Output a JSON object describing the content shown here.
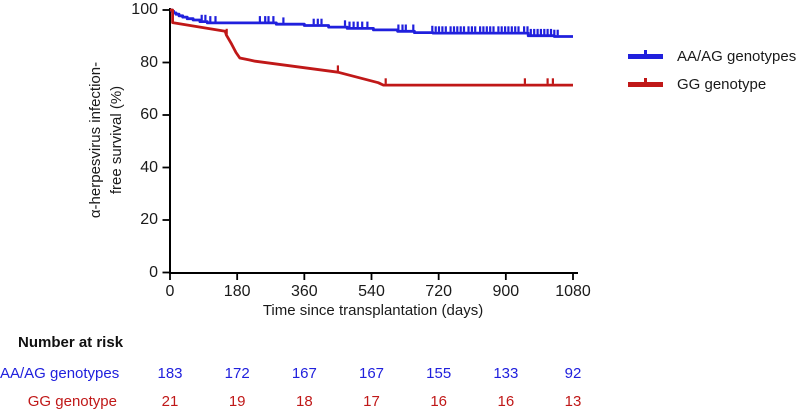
{
  "chart_data": {
    "type": "line",
    "subtype": "kaplan-meier-survival",
    "title": "",
    "xlabel": "Time since transplantation (days)",
    "ylabel_line1": "α-herpesvirus infection-",
    "ylabel_line2": "free survival (%)",
    "xlim": [
      0,
      1080
    ],
    "ylim": [
      0,
      100
    ],
    "xticks": [
      0,
      180,
      360,
      540,
      720,
      900,
      1080
    ],
    "yticks": [
      100,
      80,
      60,
      40,
      20,
      0
    ],
    "grid": "off",
    "legend_position": "right",
    "axis_color": "#000000",
    "series": [
      {
        "name": "AA/AG genotypes",
        "color": "#2020dd",
        "style": "step",
        "points": [
          [
            0,
            100
          ],
          [
            5,
            99.5
          ],
          [
            10,
            98.9
          ],
          [
            16,
            98.4
          ],
          [
            24,
            97.8
          ],
          [
            34,
            97.3
          ],
          [
            46,
            96.7
          ],
          [
            62,
            96.2
          ],
          [
            80,
            95.6
          ],
          [
            100,
            95.1
          ],
          [
            285,
            94.6
          ],
          [
            360,
            94.1
          ],
          [
            425,
            93.5
          ],
          [
            475,
            93.0
          ],
          [
            545,
            92.4
          ],
          [
            610,
            91.9
          ],
          [
            655,
            91.4
          ],
          [
            705,
            91.2
          ],
          [
            960,
            90.2
          ],
          [
            1030,
            89.9
          ],
          [
            1080,
            89.9
          ]
        ],
        "censor_days": [
          85,
          95,
          108,
          122,
          241,
          255,
          264,
          277,
          304,
          385,
          396,
          406,
          469,
          481,
          492,
          503,
          515,
          529,
          612,
          623,
          632,
          652,
          703,
          712,
          721,
          730,
          739,
          752,
          761,
          770,
          779,
          788,
          800,
          809,
          818,
          831,
          840,
          849,
          858,
          867,
          880,
          889,
          898,
          907,
          916,
          925,
          934,
          949,
          958,
          967,
          976,
          985,
          994,
          1003,
          1012,
          1021,
          1030,
          1039
        ]
      },
      {
        "name": "GG genotype",
        "color": "#c01818",
        "style": "linear",
        "points": [
          [
            0,
            100
          ],
          [
            7,
            100
          ],
          [
            7,
            95.2
          ],
          [
            148,
            91.9
          ],
          [
            151,
            90.5
          ],
          [
            165,
            87.0
          ],
          [
            177,
            83.8
          ],
          [
            187,
            81.7
          ],
          [
            212,
            81.0
          ],
          [
            228,
            80.5
          ],
          [
            450,
            76.3
          ],
          [
            558,
            72.3
          ],
          [
            572,
            71.4
          ],
          [
            1080,
            71.4
          ]
        ],
        "censor_days": [
          152,
          450,
          578,
          951,
          1012,
          1026
        ]
      }
    ]
  },
  "legend": {
    "items": [
      {
        "label": "AA/AG genotypes",
        "color": "#2020dd"
      },
      {
        "label": "GG genotype",
        "color": "#c01818"
      }
    ]
  },
  "risk_table": {
    "header": "Number at risk",
    "timepoints": [
      0,
      180,
      360,
      540,
      720,
      900,
      1080
    ],
    "rows": [
      {
        "label": "AA/AG genotypes",
        "color": "#2020dd",
        "values": [
          183,
          172,
          167,
          167,
          155,
          133,
          92
        ]
      },
      {
        "label": "GG genotype",
        "color": "#c01818",
        "values": [
          21,
          19,
          18,
          17,
          16,
          16,
          13
        ]
      }
    ]
  }
}
